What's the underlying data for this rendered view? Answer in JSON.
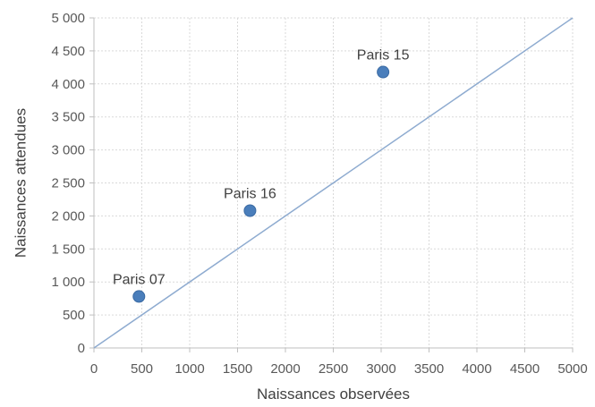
{
  "chart_data": {
    "type": "scatter",
    "title": "",
    "xlabel": "Naissances observées",
    "ylabel": "Naissances attendues",
    "xlim": [
      0,
      5000
    ],
    "ylim": [
      0,
      5000
    ],
    "x_ticks": [
      0,
      500,
      1000,
      1500,
      2000,
      2500,
      3000,
      3500,
      4000,
      4500,
      5000
    ],
    "x_tick_labels": [
      "0",
      "500",
      "1000",
      "1500",
      "2000",
      "2500",
      "3000",
      "3500",
      "4000",
      "4500",
      "5000"
    ],
    "y_ticks": [
      0,
      500,
      1000,
      1500,
      2000,
      2500,
      3000,
      3500,
      4000,
      4500,
      5000
    ],
    "y_tick_labels": [
      "0",
      "500",
      "1 000",
      "1 500",
      "2 000",
      "2 500",
      "3 000",
      "3 500",
      "4 000",
      "4 500",
      "5 000"
    ],
    "grid": true,
    "legend": "none",
    "series": [
      {
        "points": [
          {
            "label": "Paris 07",
            "x": 470,
            "y": 780
          },
          {
            "label": "Paris 16",
            "x": 1630,
            "y": 2080
          },
          {
            "label": "Paris 15",
            "x": 3020,
            "y": 4180
          }
        ],
        "color": "#4a7ebb"
      }
    ],
    "reference_line": {
      "from": [
        0,
        0
      ],
      "to": [
        5000,
        5000
      ],
      "color": "#8eabd0"
    },
    "colors": {
      "gridline": "#d9d9d9",
      "axis": "#bfbfbf"
    }
  }
}
